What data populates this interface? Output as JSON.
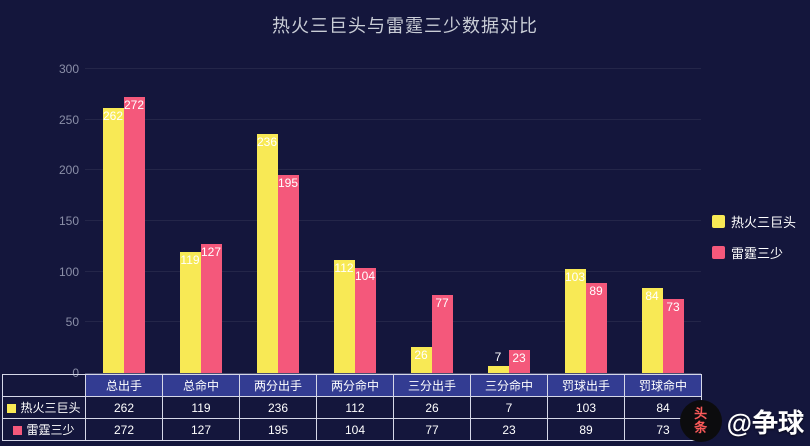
{
  "title": "热火三巨头与雷霆三少数据对比",
  "colors": {
    "background": "#14163c",
    "title": "#c9cdd6",
    "axis_label": "#8b8fa8",
    "series1": "#f8e955",
    "series2": "#f4587b",
    "table_header_bg": "#333c92",
    "table_border": "#d6d8e8",
    "bar_label": "#ffffff"
  },
  "chart_data": {
    "type": "bar",
    "title": "热火三巨头与雷霆三少数据对比",
    "categories": [
      "总出手",
      "总命中",
      "两分出手",
      "两分命中",
      "三分出手",
      "三分命中",
      "罚球出手",
      "罚球命中"
    ],
    "series": [
      {
        "name": "热火三巨头",
        "color": "#f8e955",
        "values": [
          262,
          119,
          236,
          112,
          26,
          7,
          103,
          84
        ]
      },
      {
        "name": "雷霆三少",
        "color": "#f4587b",
        "values": [
          272,
          127,
          195,
          104,
          77,
          23,
          89,
          73
        ]
      }
    ],
    "xlabel": "",
    "ylabel": "",
    "ylim": [
      0,
      300
    ],
    "yticks": [
      0,
      50,
      100,
      150,
      200,
      250,
      300
    ],
    "grid": false,
    "legend_position": "right",
    "value_labels_shown": true,
    "table_shown": true
  },
  "legend": {
    "items": [
      {
        "label": "热火三巨头",
        "color": "#f8e955"
      },
      {
        "label": "雷霆三少",
        "color": "#f4587b"
      }
    ]
  },
  "watermark": {
    "logo_text": "头条",
    "handle": "@争球"
  }
}
